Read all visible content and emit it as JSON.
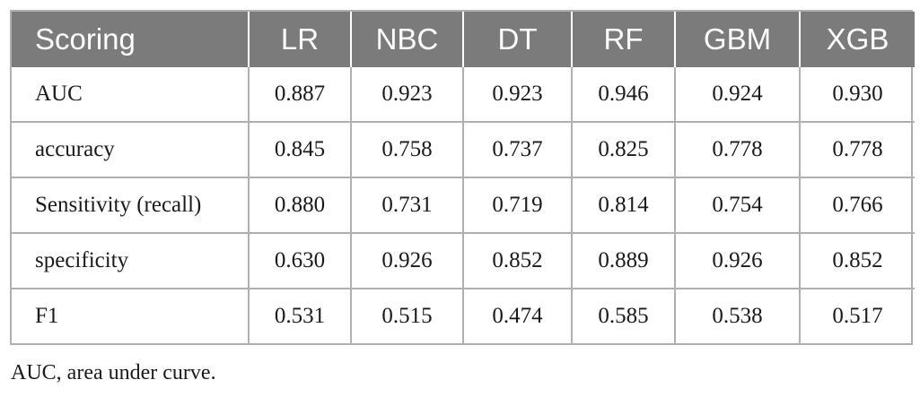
{
  "table": {
    "headers": [
      "Scoring",
      "LR",
      "NBC",
      "DT",
      "RF",
      "GBM",
      "XGB"
    ],
    "rows": [
      [
        "AUC",
        "0.887",
        "0.923",
        "0.923",
        "0.946",
        "0.924",
        "0.930"
      ],
      [
        "accuracy",
        "0.845",
        "0.758",
        "0.737",
        "0.825",
        "0.778",
        "0.778"
      ],
      [
        "Sensitivity (recall)",
        "0.880",
        "0.731",
        "0.719",
        "0.814",
        "0.754",
        "0.766"
      ],
      [
        "specificity",
        "0.630",
        "0.926",
        "0.852",
        "0.889",
        "0.926",
        "0.852"
      ],
      [
        "F1",
        "0.531",
        "0.515",
        "0.474",
        "0.585",
        "0.538",
        "0.517"
      ]
    ]
  },
  "footnote": "AUC, area under curve.",
  "colors": {
    "header_bg": "#7b7b7c",
    "header_text": "#ffffff",
    "border": "#b0b0b0"
  }
}
